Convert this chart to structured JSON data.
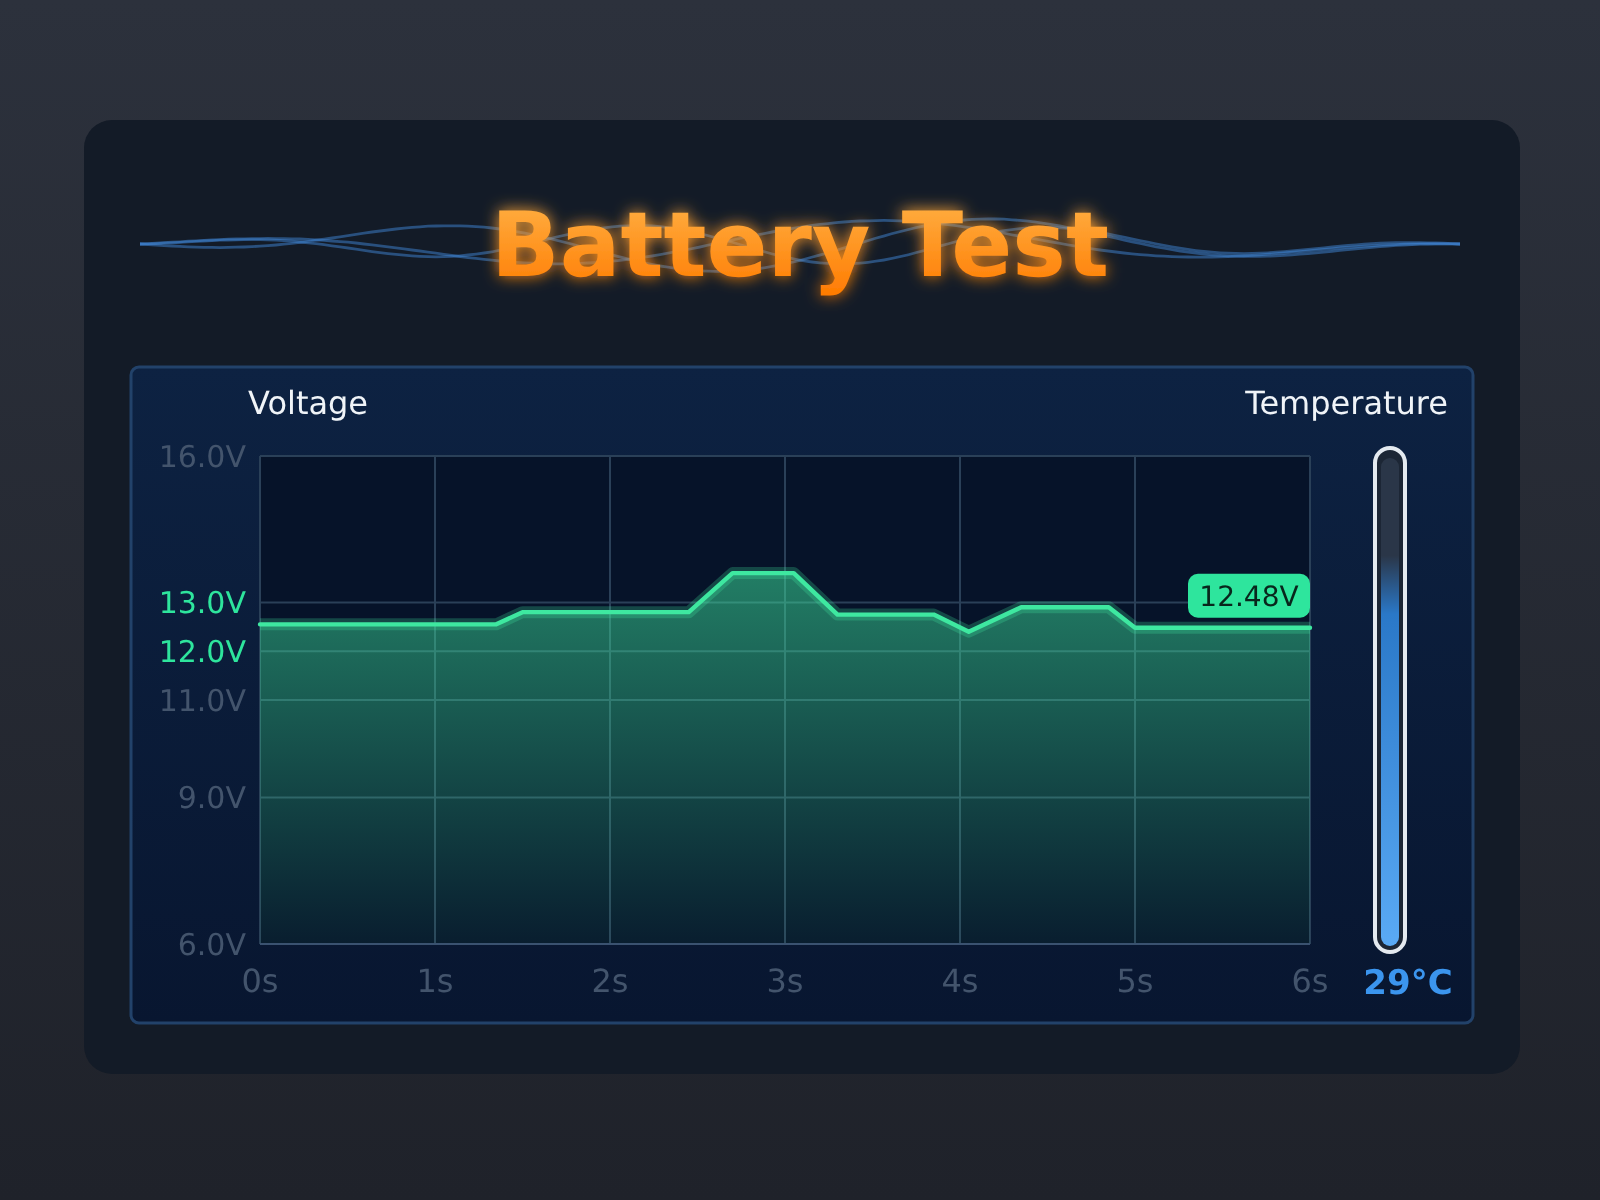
{
  "chart_data": [
    {
      "type": "area",
      "title": "Battery Test",
      "ylabel": "Voltage",
      "x": [
        0,
        1.35,
        1.5,
        2.45,
        2.7,
        3.05,
        3.3,
        3.85,
        4.05,
        4.35,
        4.85,
        5.0,
        6
      ],
      "series": [
        {
          "color": "#3ee8a0",
          "values": [
            12.55,
            12.55,
            12.8,
            12.8,
            13.6,
            13.6,
            12.75,
            12.75,
            12.4,
            12.9,
            12.9,
            12.48,
            12.48
          ]
        }
      ],
      "xlim": [
        0,
        6
      ],
      "xticks": [
        {
          "value": 0,
          "label": "0s"
        },
        {
          "value": 1,
          "label": "1s"
        },
        {
          "value": 2,
          "label": "2s"
        },
        {
          "value": 3,
          "label": "3s"
        },
        {
          "value": 4,
          "label": "4s"
        },
        {
          "value": 5,
          "label": "5s"
        },
        {
          "value": 6,
          "label": "6s"
        }
      ],
      "ylim": [
        6,
        16
      ],
      "yticks": [
        {
          "value": 6,
          "label": "6.0V"
        },
        {
          "value": 9,
          "label": "9.0V"
        },
        {
          "value": 11,
          "label": "11.0V"
        },
        {
          "value": 12,
          "label": "12.0V"
        },
        {
          "value": 13,
          "label": "13.0V"
        },
        {
          "value": 16,
          "label": "16.0V"
        }
      ],
      "grid": true,
      "annotations": [
        {
          "text": "12.48V",
          "x": 6,
          "y": 12.48
        }
      ]
    },
    {
      "type": "other",
      "title": "Temperature",
      "annotations": [
        "29°C"
      ]
    }
  ]
}
